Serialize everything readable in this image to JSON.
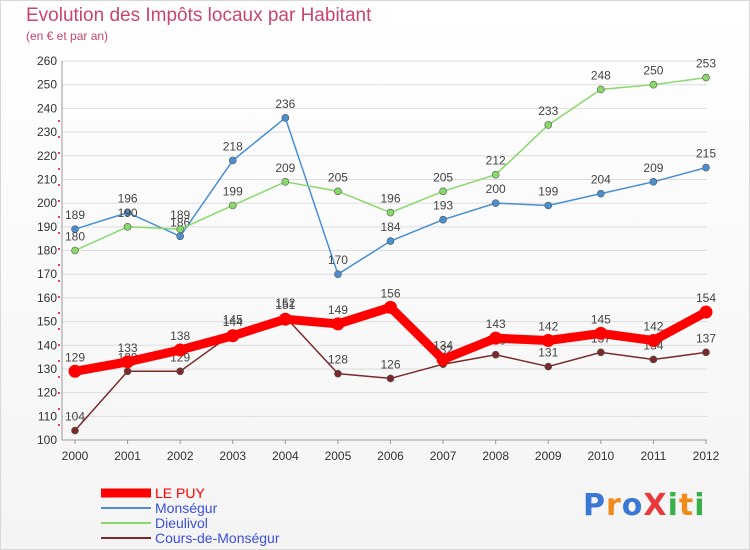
{
  "chart_data": {
    "type": "line",
    "title": "Evolution des Impôts locaux par Habitant",
    "subtitle": "(en € et par an)",
    "x": [
      "2000",
      "2001",
      "2002",
      "2003",
      "2004",
      "2005",
      "2006",
      "2007",
      "2008",
      "2009",
      "2010",
      "2011",
      "2012"
    ],
    "ylim": [
      100,
      260
    ],
    "yticks": [
      100,
      110,
      120,
      130,
      140,
      150,
      160,
      170,
      180,
      190,
      200,
      210,
      220,
      230,
      240,
      250,
      260
    ],
    "grid": "horizontal",
    "legend_placement": "bottom-left",
    "series": [
      {
        "name": "Monségur",
        "color": "#4a8fd0",
        "values": [
          189,
          196,
          186,
          218,
          236,
          170,
          184,
          193,
          200,
          199,
          204,
          209,
          215
        ],
        "labels": [
          "189",
          "196",
          "186",
          "218",
          "236",
          "170",
          "184",
          "193",
          "200",
          "199",
          "204",
          "209",
          "215"
        ]
      },
      {
        "name": "Dieulivol",
        "color": "#88d86a",
        "values": [
          180,
          190,
          189,
          199,
          209,
          205,
          196,
          205,
          212,
          233,
          248,
          250,
          253
        ],
        "labels": [
          "180",
          "190",
          "189",
          "199",
          "209",
          "205",
          "196",
          "205",
          "212",
          "233",
          "248",
          "250",
          "253"
        ]
      },
      {
        "name": "Cours-de-Monségur",
        "color": "#7a2a2a",
        "values": [
          104,
          129,
          129,
          145,
          152,
          128,
          126,
          132,
          136,
          131,
          137,
          134,
          137
        ],
        "labels": [
          "104",
          "129",
          "129",
          "145",
          "152",
          "128",
          "126",
          "132",
          "136",
          "131",
          "137",
          "134",
          "137"
        ]
      },
      {
        "name": "LE PUY",
        "color": "#ff0000",
        "values": [
          129,
          133,
          138,
          144,
          151,
          149,
          156,
          134,
          143,
          142,
          145,
          142,
          154
        ],
        "labels": [
          "129",
          "133",
          "138",
          "144",
          "151",
          "149",
          "156",
          "134",
          "143",
          "142",
          "145",
          "142",
          "154"
        ]
      }
    ]
  },
  "legend": [
    {
      "name": "LE PUY",
      "color": "#ff0000"
    },
    {
      "name": "Monségur",
      "color": "#4a8fd0"
    },
    {
      "name": "Dieulivol",
      "color": "#88d86a"
    },
    {
      "name": "Cours-de-Monségur",
      "color": "#7a2a2a"
    }
  ],
  "logo": {
    "text": "ProXiti",
    "letters": [
      {
        "ch": "P",
        "color": "#3a78d8"
      },
      {
        "ch": "r",
        "color": "#f08a1a"
      },
      {
        "ch": "o",
        "color": "#3a78d8"
      },
      {
        "ch": "X",
        "color": "#e83a3a"
      },
      {
        "ch": "i",
        "color": "#3ab04a"
      },
      {
        "ch": "t",
        "color": "#f08a1a"
      },
      {
        "ch": "i",
        "color": "#3ab04a"
      }
    ]
  }
}
